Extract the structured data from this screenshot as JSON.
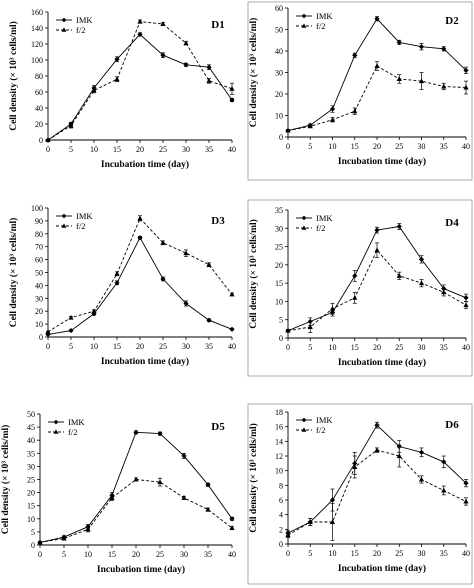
{
  "chart_data": [
    {
      "type": "line",
      "title": "D1",
      "xlabel": "Incubation time (day)",
      "ylabel": "Cell density (× 10³ cells/ml)",
      "x": [
        0,
        5,
        10,
        15,
        20,
        25,
        30,
        35,
        40
      ],
      "xticks": [
        0,
        5,
        10,
        15,
        20,
        25,
        30,
        35,
        40
      ],
      "ylim": [
        0,
        160
      ],
      "yticks": [
        0,
        20,
        40,
        60,
        80,
        100,
        120,
        140,
        160
      ],
      "legend_position": "top-left",
      "series": [
        {
          "name": "IMK",
          "marker": "diamond",
          "dash": "solid",
          "values": [
            0,
            20,
            65,
            101,
            132,
            106,
            94,
            91,
            50
          ],
          "err": [
            0,
            2,
            3,
            3,
            2,
            3,
            2,
            3,
            2
          ]
        },
        {
          "name": "f/2",
          "marker": "triangle",
          "dash": "dashed",
          "values": [
            0,
            18,
            62,
            76,
            148,
            145,
            121,
            74,
            64
          ],
          "err": [
            0,
            3,
            3,
            3,
            2,
            2,
            2,
            3,
            7
          ]
        }
      ]
    },
    {
      "type": "line",
      "title": "D2",
      "xlabel": "Incubation time (day)",
      "ylabel": "Cell density (× 10³ cells/ml)",
      "x": [
        0,
        5,
        10,
        15,
        20,
        25,
        30,
        35,
        40
      ],
      "xticks": [
        0,
        5,
        10,
        15,
        20,
        25,
        30,
        35,
        40
      ],
      "ylim": [
        0,
        60
      ],
      "yticks": [
        0,
        10,
        20,
        30,
        40,
        50,
        60
      ],
      "legend_position": "top-left",
      "series": [
        {
          "name": "IMK",
          "marker": "diamond",
          "dash": "solid",
          "values": [
            3,
            5.5,
            13,
            38,
            55,
            44,
            42,
            41,
            31
          ],
          "err": [
            0.5,
            0.5,
            1.5,
            1,
            1,
            1,
            1.5,
            1,
            1.5
          ]
        },
        {
          "name": "f/2",
          "marker": "triangle",
          "dash": "dashed",
          "values": [
            3,
            5,
            8,
            12,
            33,
            27,
            26,
            23.5,
            23
          ],
          "err": [
            0.5,
            0.5,
            1,
            1.5,
            2,
            2,
            4,
            1.5,
            3
          ]
        }
      ]
    },
    {
      "type": "line",
      "title": "D3",
      "xlabel": "Incubation time (day)",
      "ylabel": "Cell density (× 10³ cells/ml)",
      "x": [
        0,
        5,
        10,
        15,
        20,
        25,
        30,
        35,
        40
      ],
      "xticks": [
        0,
        5,
        10,
        15,
        20,
        25,
        30,
        35,
        40
      ],
      "ylim": [
        0,
        100
      ],
      "yticks": [
        0,
        10,
        20,
        30,
        40,
        50,
        60,
        70,
        80,
        90,
        100
      ],
      "legend_position": "top-left",
      "series": [
        {
          "name": "IMK",
          "marker": "diamond",
          "dash": "solid",
          "values": [
            2,
            5,
            18,
            42,
            77,
            45,
            26,
            13,
            6
          ],
          "err": [
            0.5,
            0.5,
            1,
            1.5,
            1,
            1.5,
            2,
            1,
            0.5
          ]
        },
        {
          "name": "f/2",
          "marker": "triangle",
          "dash": "dashed",
          "values": [
            4,
            15,
            20,
            49,
            92,
            73,
            65,
            56,
            33
          ],
          "err": [
            0.5,
            1,
            1,
            1.5,
            2,
            1.5,
            2.5,
            1.5,
            1
          ]
        }
      ]
    },
    {
      "type": "line",
      "title": "D4",
      "xlabel": "Incubation time (day)",
      "ylabel": "Cell density (× 10³ cells/ml)",
      "x": [
        0,
        5,
        10,
        15,
        20,
        25,
        30,
        35,
        40
      ],
      "xticks": [
        0,
        5,
        10,
        15,
        20,
        25,
        30,
        35,
        40
      ],
      "ylim": [
        0,
        35
      ],
      "yticks": [
        0,
        5,
        10,
        15,
        20,
        25,
        30,
        35
      ],
      "legend_position": "top-left",
      "series": [
        {
          "name": "IMK",
          "marker": "diamond",
          "dash": "solid",
          "values": [
            2,
            4.5,
            7,
            17,
            29.5,
            30.5,
            21.5,
            13.5,
            11
          ],
          "err": [
            0.3,
            1,
            1,
            1.5,
            0.8,
            0.8,
            1,
            1,
            1
          ]
        },
        {
          "name": "f/2",
          "marker": "triangle",
          "dash": "dashed",
          "values": [
            2,
            3,
            8,
            11,
            24,
            17,
            15,
            12.5,
            9
          ],
          "err": [
            0.3,
            1.5,
            1.5,
            1.5,
            2,
            1,
            1,
            1,
            1
          ]
        }
      ]
    },
    {
      "type": "line",
      "title": "D5",
      "xlabel": "Incubation time (day)",
      "ylabel": "Cell density (× 10³ cells/ml)",
      "x": [
        0,
        5,
        10,
        15,
        20,
        25,
        30,
        35,
        40
      ],
      "xticks": [
        0,
        5,
        10,
        15,
        20,
        25,
        30,
        35,
        40
      ],
      "ylim": [
        0,
        50
      ],
      "yticks": [
        0,
        5,
        10,
        15,
        20,
        25,
        30,
        35,
        40,
        45,
        50
      ],
      "legend_position": "top-left",
      "series": [
        {
          "name": "IMK",
          "marker": "diamond",
          "dash": "solid",
          "values": [
            1,
            3,
            7,
            19,
            43,
            42.5,
            34,
            23,
            10
          ],
          "err": [
            0.3,
            0.5,
            0.8,
            1,
            0.6,
            0.6,
            1,
            0.6,
            0.6
          ]
        },
        {
          "name": "f/2",
          "marker": "triangle",
          "dash": "dashed",
          "values": [
            1,
            2.5,
            6,
            18,
            25,
            24,
            18,
            13.5,
            6.5
          ],
          "err": [
            0.3,
            0.5,
            1,
            1,
            0.6,
            1.5,
            0.6,
            0.6,
            0.5
          ]
        }
      ]
    },
    {
      "type": "line",
      "title": "D6",
      "xlabel": "Incubation time (day)",
      "ylabel": "Cell density (× 10³ cells/ml)",
      "x": [
        0,
        5,
        10,
        15,
        20,
        25,
        30,
        35,
        40
      ],
      "xticks": [
        0,
        5,
        10,
        15,
        20,
        25,
        30,
        35,
        40
      ],
      "ylim": [
        0,
        18
      ],
      "yticks": [
        0,
        2,
        4,
        6,
        8,
        10,
        12,
        14,
        16,
        18
      ],
      "legend_position": "top-left",
      "series": [
        {
          "name": "IMK",
          "marker": "diamond",
          "dash": "solid",
          "values": [
            1.5,
            3,
            6,
            11,
            16.2,
            13.3,
            12.5,
            11.2,
            8.3
          ],
          "err": [
            0.3,
            0.5,
            1.5,
            1.5,
            0.4,
            0.8,
            0.6,
            0.8,
            0.5
          ]
        },
        {
          "name": "f/2",
          "marker": "triangle",
          "dash": "dashed",
          "values": [
            1.2,
            3,
            3,
            10.5,
            12.8,
            12,
            8.8,
            7.3,
            5.8
          ],
          "err": [
            0.3,
            0.5,
            2.5,
            1.5,
            0.3,
            1.5,
            0.5,
            0.6,
            0.5
          ]
        }
      ]
    }
  ]
}
